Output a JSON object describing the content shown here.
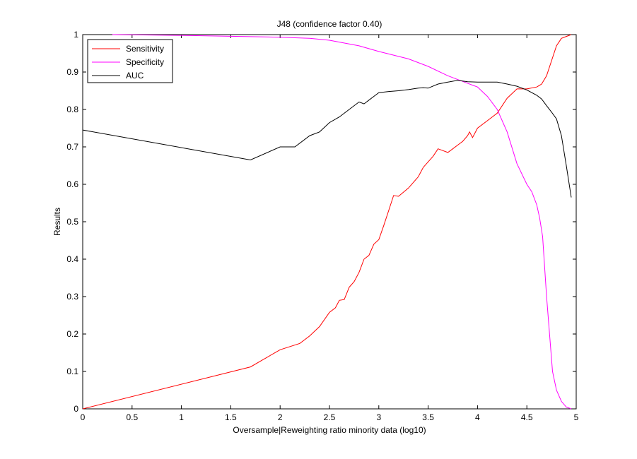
{
  "chart_data": {
    "type": "line",
    "title": "J48 (confidence factor 0.40)",
    "xlabel": "Oversample|Reweighting ratio minority data (log10)",
    "ylabel": "Results",
    "xlim": [
      0,
      5
    ],
    "ylim": [
      0,
      1
    ],
    "xticks": [
      0,
      0.5,
      1,
      1.5,
      2,
      2.5,
      3,
      3.5,
      4,
      4.5,
      5
    ],
    "xtick_labels": [
      "0",
      "0.5",
      "1",
      "1.5",
      "2",
      "2.5",
      "3",
      "3.5",
      "4",
      "4.5",
      "5"
    ],
    "yticks": [
      0,
      0.1,
      0.2,
      0.3,
      0.4,
      0.5,
      0.6,
      0.7,
      0.8,
      0.9,
      1
    ],
    "ytick_labels": [
      "0",
      "0.1",
      "0.2",
      "0.3",
      "0.4",
      "0.5",
      "0.6",
      "0.7",
      "0.8",
      "0.9",
      "1"
    ],
    "grid": false,
    "legend_position": "top-left",
    "series": [
      {
        "name": "Sensitivity",
        "color": "#ff0000",
        "x": [
          0,
          1.7,
          1.85,
          2.0,
          2.2,
          2.3,
          2.4,
          2.5,
          2.56,
          2.6,
          2.65,
          2.7,
          2.75,
          2.8,
          2.85,
          2.9,
          2.95,
          3.0,
          3.05,
          3.1,
          3.15,
          3.2,
          3.3,
          3.4,
          3.45,
          3.5,
          3.55,
          3.6,
          3.65,
          3.7,
          3.75,
          3.8,
          3.85,
          3.9,
          3.92,
          3.95,
          4.0,
          4.1,
          4.2,
          4.3,
          4.4,
          4.5,
          4.6,
          4.65,
          4.7,
          4.75,
          4.8,
          4.85,
          4.9,
          4.95
        ],
        "y": [
          0,
          0.112,
          0.135,
          0.158,
          0.175,
          0.195,
          0.22,
          0.258,
          0.27,
          0.29,
          0.292,
          0.325,
          0.34,
          0.365,
          0.4,
          0.41,
          0.44,
          0.452,
          0.49,
          0.53,
          0.57,
          0.568,
          0.59,
          0.62,
          0.645,
          0.66,
          0.675,
          0.695,
          0.69,
          0.685,
          0.695,
          0.705,
          0.715,
          0.73,
          0.74,
          0.725,
          0.75,
          0.77,
          0.79,
          0.83,
          0.855,
          0.855,
          0.86,
          0.868,
          0.89,
          0.93,
          0.97,
          0.99,
          0.995,
          1.0
        ]
      },
      {
        "name": "Specificity",
        "color": "#ff00ff",
        "x": [
          0.3,
          1.0,
          2.0,
          2.3,
          2.5,
          2.8,
          3.0,
          3.3,
          3.5,
          3.7,
          3.85,
          3.95,
          4.0,
          4.1,
          4.2,
          4.3,
          4.4,
          4.5,
          4.55,
          4.6,
          4.63,
          4.66,
          4.7,
          4.73,
          4.76,
          4.8,
          4.85,
          4.9,
          4.95
        ],
        "y": [
          1.0,
          0.998,
          0.993,
          0.99,
          0.985,
          0.97,
          0.955,
          0.935,
          0.915,
          0.89,
          0.875,
          0.865,
          0.86,
          0.835,
          0.8,
          0.74,
          0.655,
          0.6,
          0.58,
          0.545,
          0.51,
          0.46,
          0.3,
          0.2,
          0.1,
          0.05,
          0.02,
          0.005,
          0.0
        ]
      },
      {
        "name": "AUC",
        "color": "#000000",
        "x": [
          0,
          1.7,
          2.0,
          2.15,
          2.3,
          2.4,
          2.5,
          2.6,
          2.7,
          2.8,
          2.85,
          2.9,
          2.95,
          3.0,
          3.1,
          3.2,
          3.3,
          3.4,
          3.45,
          3.5,
          3.6,
          3.7,
          3.8,
          3.9,
          4.0,
          4.2,
          4.3,
          4.4,
          4.5,
          4.6,
          4.65,
          4.7,
          4.75,
          4.8,
          4.85,
          4.9,
          4.95
        ],
        "y": [
          0.745,
          0.665,
          0.7,
          0.7,
          0.73,
          0.74,
          0.765,
          0.78,
          0.8,
          0.82,
          0.815,
          0.825,
          0.835,
          0.845,
          0.848,
          0.85,
          0.853,
          0.857,
          0.858,
          0.857,
          0.868,
          0.873,
          0.878,
          0.874,
          0.873,
          0.873,
          0.868,
          0.862,
          0.852,
          0.838,
          0.828,
          0.81,
          0.793,
          0.775,
          0.73,
          0.65,
          0.565
        ]
      }
    ]
  }
}
